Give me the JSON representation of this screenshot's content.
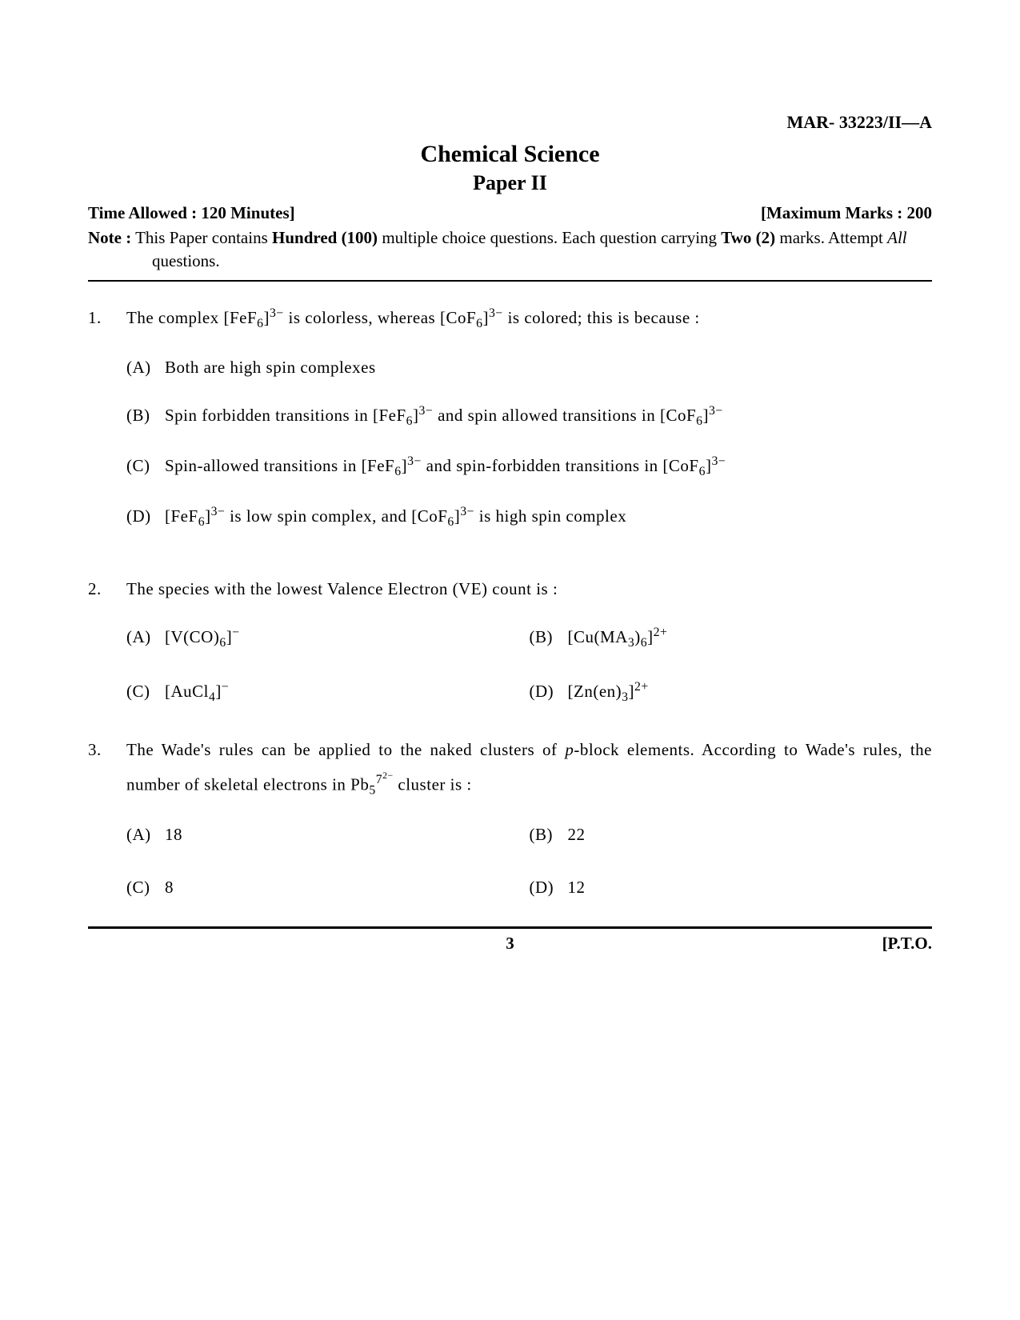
{
  "header": {
    "code": "MAR- 33223/II—A",
    "title": "Chemical Science",
    "subtitle": "Paper II",
    "time_label": "Time Allowed : 120 Minutes]",
    "marks_label": "[Maximum Marks : 200",
    "note_label": "Note :",
    "note_text_1": "This Paper contains ",
    "note_bold_1": "Hundred (100)",
    "note_text_2": " multiple choice questions. Each question carrying ",
    "note_bold_2": "Two (2)",
    "note_text_3": " marks. Attempt ",
    "note_italic": "All",
    "note_text_4": " questions."
  },
  "questions": [
    {
      "num": "1.",
      "stem_html": "The complex [FeF<sub>6</sub>]<sup>3−</sup> is colorless, whereas [CoF<sub>6</sub>]<sup>3−</sup> is colored; this is because :",
      "layout": "vertical",
      "options": [
        {
          "label": "(A)",
          "html": "Both are high spin complexes"
        },
        {
          "label": "(B)",
          "html": "Spin forbidden transitions in [FeF<sub>6</sub>]<sup>3−</sup> and spin allowed transitions in [CoF<sub>6</sub>]<sup>3−</sup>"
        },
        {
          "label": "(C)",
          "html": "Spin-allowed transitions in [FeF<sub>6</sub>]<sup>3−</sup> and spin-forbidden transitions in [CoF<sub>6</sub>]<sup>3−</sup>"
        },
        {
          "label": "(D)",
          "html": "[FeF<sub>6</sub>]<sup>3−</sup> is low spin complex, and [CoF<sub>6</sub>]<sup>3−</sup> is high spin complex"
        }
      ]
    },
    {
      "num": "2.",
      "stem_html": "The species with the lowest Valence Electron (VE) count is :",
      "layout": "2col",
      "options": [
        {
          "label": "(A)",
          "html": "[V(CO)<sub>6</sub>]<sup>−</sup>"
        },
        {
          "label": "(B)",
          "html": "[Cu(MA<sub>3</sub>)<sub>6</sub>]<sup>2+</sup>"
        },
        {
          "label": "(C)",
          "html": "[AuCl<sub>4</sub>]<sup>−</sup>"
        },
        {
          "label": "(D)",
          "html": "[Zn(en)<sub>3</sub>]<sup>2+</sup>"
        }
      ]
    },
    {
      "num": "3.",
      "stem_html": "The Wade's rules can be applied to the naked clusters of <i>p</i>-block elements. According to Wade's rules, the number of skeletal electrons in Pb<sub>5</sub><sup>7<sup>2−</sup></sup> cluster is :",
      "layout": "2col",
      "options": [
        {
          "label": "(A)",
          "html": "18"
        },
        {
          "label": "(B)",
          "html": "22"
        },
        {
          "label": "(C)",
          "html": "8"
        },
        {
          "label": "(D)",
          "html": "12"
        }
      ]
    }
  ],
  "footer": {
    "left": "",
    "page_number": "3",
    "right": "[P.T.O."
  }
}
